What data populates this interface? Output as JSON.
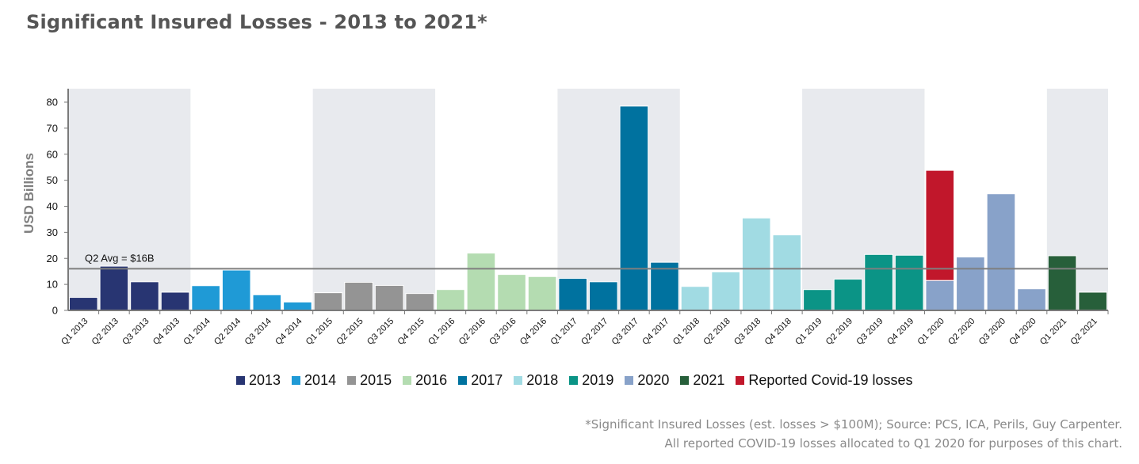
{
  "title": "Significant Insured Losses - 2013 to 2021*",
  "footnote": {
    "line1": "*Significant Insured Losses (est. losses > $100M); Source: PCS, ICA, Perils, Guy Carpenter.",
    "line2": "All reported COVID-19 losses allocated to Q1 2020 for purposes of this chart."
  },
  "chart_data": {
    "type": "bar",
    "ylabel": "USD Billions",
    "xlabel": "",
    "ylim": [
      0,
      80
    ],
    "yticks": [
      0,
      10,
      20,
      30,
      40,
      50,
      60,
      70,
      80
    ],
    "grid": false,
    "alternating_year_shading": true,
    "legend_position": "bottom",
    "reference_line": {
      "value": 16,
      "label": "Q2 Avg = $16B",
      "color": "#7f7f7f"
    },
    "categories": [
      "Q1 2013",
      "Q2 2013",
      "Q3 2013",
      "Q4 2013",
      "Q1 2014",
      "Q2 2014",
      "Q3 2014",
      "Q4 2014",
      "Q1 2015",
      "Q2 2015",
      "Q3 2015",
      "Q4 2015",
      "Q1 2016",
      "Q2 2016",
      "Q3 2016",
      "Q4 2016",
      "Q1 2017",
      "Q2 2017",
      "Q3 2017",
      "Q4 2017",
      "Q1 2018",
      "Q2 2018",
      "Q3 2018",
      "Q4 2018",
      "Q1 2019",
      "Q2 2019",
      "Q3 2019",
      "Q4 2019",
      "Q1 2020",
      "Q2 2020",
      "Q3 2020",
      "Q4 2020",
      "Q1 2021",
      "Q2 2021"
    ],
    "values": [
      5,
      17,
      11,
      7,
      9.5,
      15.5,
      6,
      3.2,
      6.8,
      10.8,
      9.6,
      6.5,
      8,
      22,
      13.8,
      13,
      12.3,
      11,
      78.5,
      18.5,
      9.2,
      14.8,
      35.5,
      29,
      8,
      12,
      21.5,
      21.2,
      11.5,
      20.5,
      44.8,
      8.3,
      21,
      7
    ],
    "year_of_bar": [
      "2013",
      "2013",
      "2013",
      "2013",
      "2014",
      "2014",
      "2014",
      "2014",
      "2015",
      "2015",
      "2015",
      "2015",
      "2016",
      "2016",
      "2016",
      "2016",
      "2017",
      "2017",
      "2017",
      "2017",
      "2018",
      "2018",
      "2018",
      "2018",
      "2019",
      "2019",
      "2019",
      "2019",
      "2020",
      "2020",
      "2020",
      "2020",
      "2021",
      "2021"
    ],
    "stacked_covid": {
      "category": "Q1 2020",
      "value": 42.3
    },
    "series_colors": {
      "2013": "#283572",
      "2014": "#1f9ad6",
      "2015": "#949494",
      "2016": "#b4dcb1",
      "2017": "#00729f",
      "2018": "#a1dbe3",
      "2019": "#0b9486",
      "2020": "#88a2c9",
      "2021": "#275f3a",
      "Reported Covid-19 losses": "#c1172b"
    },
    "legend": [
      {
        "label": "2013",
        "color": "#283572"
      },
      {
        "label": "2014",
        "color": "#1f9ad6"
      },
      {
        "label": "2015",
        "color": "#949494"
      },
      {
        "label": "2016",
        "color": "#b4dcb1"
      },
      {
        "label": "2017",
        "color": "#00729f"
      },
      {
        "label": "2018",
        "color": "#a1dbe3"
      },
      {
        "label": "2019",
        "color": "#0b9486"
      },
      {
        "label": "2020",
        "color": "#88a2c9"
      },
      {
        "label": "2021",
        "color": "#275f3a"
      },
      {
        "label": "Reported Covid-19 losses",
        "color": "#c1172b"
      }
    ]
  }
}
